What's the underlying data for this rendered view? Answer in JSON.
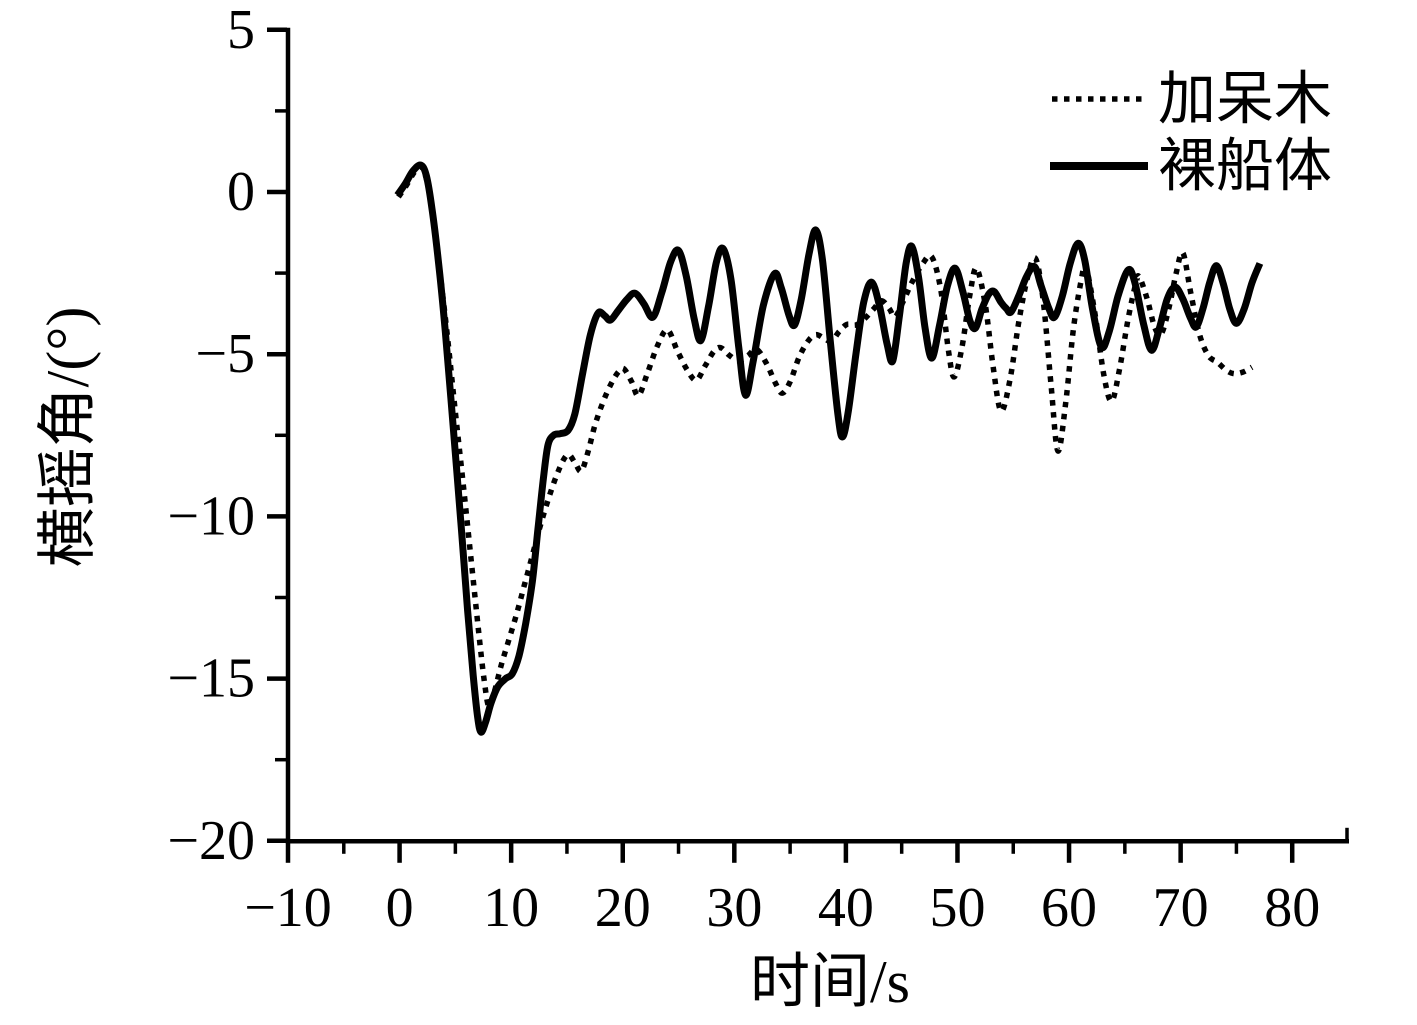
{
  "chart_data": {
    "type": "line",
    "title": "",
    "xlabel": "时间/s",
    "ylabel": "横摇角/(°)",
    "xlim": [
      -10,
      85
    ],
    "ylim": [
      -20,
      5
    ],
    "x_major_ticks": [
      -10,
      0,
      10,
      20,
      30,
      40,
      50,
      60,
      70,
      80
    ],
    "x_minor_ticks": [
      -5,
      5,
      15,
      25,
      35,
      45,
      55,
      65,
      75
    ],
    "y_major_ticks": [
      5,
      0,
      -5,
      -10,
      -15,
      -20
    ],
    "y_minor_ticks": [
      2.5,
      -2.5,
      -7.5,
      -12.5,
      -17.5
    ],
    "grid": false,
    "legend_position": "top-right-inside",
    "background_color": "#ffffff",
    "axis_color": "#000000",
    "series": [
      {
        "name": "加呆木",
        "style": "dotted",
        "color": "#000000",
        "points": [
          [
            -0.1,
            -0.15
          ],
          [
            0.6,
            0.2
          ],
          [
            1.3,
            0.6
          ],
          [
            1.9,
            0.78
          ],
          [
            2.4,
            0.4
          ],
          [
            3.0,
            -0.7
          ],
          [
            3.6,
            -2.4
          ],
          [
            4.3,
            -4.5
          ],
          [
            5.0,
            -6.8
          ],
          [
            5.7,
            -9.0
          ],
          [
            6.4,
            -11.3
          ],
          [
            7.1,
            -13.6
          ],
          [
            7.6,
            -15.1
          ],
          [
            8.0,
            -15.85
          ],
          [
            8.5,
            -15.4
          ],
          [
            9.1,
            -14.6
          ],
          [
            9.8,
            -13.8
          ],
          [
            10.5,
            -13.0
          ],
          [
            11.2,
            -12.1
          ],
          [
            11.9,
            -11.2
          ],
          [
            12.6,
            -10.3
          ],
          [
            13.3,
            -9.5
          ],
          [
            14.0,
            -8.8
          ],
          [
            14.7,
            -8.25
          ],
          [
            15.2,
            -8.1
          ],
          [
            15.8,
            -8.4
          ],
          [
            16.3,
            -8.6
          ],
          [
            16.9,
            -8.0
          ],
          [
            17.5,
            -7.2
          ],
          [
            18.2,
            -6.5
          ],
          [
            18.9,
            -5.95
          ],
          [
            19.6,
            -5.55
          ],
          [
            20.1,
            -5.45
          ],
          [
            20.8,
            -5.85
          ],
          [
            21.4,
            -6.28
          ],
          [
            22.2,
            -5.6
          ],
          [
            23.1,
            -4.75
          ],
          [
            24.0,
            -4.25
          ],
          [
            24.9,
            -4.9
          ],
          [
            25.8,
            -5.5
          ],
          [
            26.6,
            -5.8
          ],
          [
            27.4,
            -5.35
          ],
          [
            28.2,
            -4.9
          ],
          [
            28.8,
            -4.8
          ],
          [
            29.6,
            -5.05
          ],
          [
            30.4,
            -5.2
          ],
          [
            31.2,
            -5.05
          ],
          [
            32.0,
            -4.85
          ],
          [
            32.9,
            -5.3
          ],
          [
            33.7,
            -5.9
          ],
          [
            34.3,
            -6.2
          ],
          [
            35.0,
            -5.85
          ],
          [
            35.8,
            -5.1
          ],
          [
            36.6,
            -4.6
          ],
          [
            37.3,
            -4.4
          ],
          [
            38.0,
            -4.5
          ],
          [
            38.7,
            -4.6
          ],
          [
            39.4,
            -4.3
          ],
          [
            40.1,
            -4.08
          ],
          [
            40.9,
            -4.1
          ],
          [
            41.7,
            -3.9
          ],
          [
            42.5,
            -3.6
          ],
          [
            43.2,
            -3.35
          ],
          [
            43.9,
            -3.6
          ],
          [
            44.4,
            -3.85
          ],
          [
            45.1,
            -3.4
          ],
          [
            45.9,
            -2.8
          ],
          [
            46.9,
            -2.2
          ],
          [
            47.7,
            -2.0
          ],
          [
            48.5,
            -3.0
          ],
          [
            49.2,
            -4.9
          ],
          [
            49.7,
            -5.7
          ],
          [
            50.4,
            -4.8
          ],
          [
            51.1,
            -3.2
          ],
          [
            51.7,
            -2.35
          ],
          [
            52.5,
            -3.5
          ],
          [
            53.2,
            -5.4
          ],
          [
            53.9,
            -6.75
          ],
          [
            54.7,
            -5.8
          ],
          [
            55.5,
            -4.0
          ],
          [
            56.3,
            -2.6
          ],
          [
            57.0,
            -2.05
          ],
          [
            57.7,
            -3.4
          ],
          [
            58.4,
            -6.0
          ],
          [
            59.0,
            -7.98
          ],
          [
            59.7,
            -6.5
          ],
          [
            60.4,
            -4.2
          ],
          [
            61.1,
            -2.7
          ],
          [
            61.5,
            -2.3
          ],
          [
            62.3,
            -3.7
          ],
          [
            63.1,
            -5.6
          ],
          [
            63.8,
            -6.45
          ],
          [
            64.5,
            -5.5
          ],
          [
            65.3,
            -3.9
          ],
          [
            66.0,
            -2.8
          ],
          [
            66.3,
            -2.62
          ],
          [
            67.0,
            -3.3
          ],
          [
            67.7,
            -4.2
          ],
          [
            68.3,
            -4.35
          ],
          [
            69.0,
            -3.5
          ],
          [
            69.6,
            -2.5
          ],
          [
            70.2,
            -1.88
          ],
          [
            70.9,
            -3.1
          ],
          [
            71.7,
            -4.4
          ],
          [
            72.5,
            -5.05
          ],
          [
            73.3,
            -5.25
          ],
          [
            74.1,
            -5.5
          ],
          [
            74.8,
            -5.6
          ],
          [
            75.6,
            -5.55
          ],
          [
            76.4,
            -5.4
          ]
        ]
      },
      {
        "name": "裸船体",
        "style": "solid",
        "color": "#000000",
        "points": [
          [
            -0.2,
            -0.1
          ],
          [
            0.5,
            0.25
          ],
          [
            1.2,
            0.65
          ],
          [
            1.9,
            0.83
          ],
          [
            2.4,
            0.5
          ],
          [
            2.9,
            -0.5
          ],
          [
            3.5,
            -2.2
          ],
          [
            4.1,
            -4.3
          ],
          [
            4.8,
            -7.2
          ],
          [
            5.5,
            -10.2
          ],
          [
            6.1,
            -12.9
          ],
          [
            6.6,
            -14.9
          ],
          [
            7.0,
            -16.2
          ],
          [
            7.3,
            -16.65
          ],
          [
            7.7,
            -16.35
          ],
          [
            8.2,
            -15.75
          ],
          [
            8.8,
            -15.25
          ],
          [
            9.5,
            -15.0
          ],
          [
            10.1,
            -14.85
          ],
          [
            10.7,
            -14.3
          ],
          [
            11.3,
            -13.3
          ],
          [
            11.9,
            -12.0
          ],
          [
            12.4,
            -10.4
          ],
          [
            12.9,
            -8.8
          ],
          [
            13.3,
            -7.8
          ],
          [
            13.8,
            -7.5
          ],
          [
            14.4,
            -7.45
          ],
          [
            15.1,
            -7.35
          ],
          [
            15.7,
            -6.85
          ],
          [
            16.4,
            -5.6
          ],
          [
            17.1,
            -4.4
          ],
          [
            17.8,
            -3.73
          ],
          [
            18.4,
            -3.82
          ],
          [
            18.9,
            -3.95
          ],
          [
            19.6,
            -3.65
          ],
          [
            20.4,
            -3.3
          ],
          [
            21.1,
            -3.12
          ],
          [
            21.9,
            -3.45
          ],
          [
            22.7,
            -3.86
          ],
          [
            23.5,
            -3.1
          ],
          [
            24.3,
            -2.15
          ],
          [
            25.0,
            -1.8
          ],
          [
            25.7,
            -2.6
          ],
          [
            26.4,
            -3.9
          ],
          [
            27.0,
            -4.58
          ],
          [
            27.7,
            -3.5
          ],
          [
            28.4,
            -2.15
          ],
          [
            29.0,
            -1.75
          ],
          [
            29.7,
            -2.7
          ],
          [
            30.4,
            -4.8
          ],
          [
            31.0,
            -6.26
          ],
          [
            31.7,
            -5.2
          ],
          [
            32.6,
            -3.5
          ],
          [
            33.6,
            -2.52
          ],
          [
            34.2,
            -2.95
          ],
          [
            34.9,
            -3.8
          ],
          [
            35.4,
            -4.1
          ],
          [
            36.0,
            -3.3
          ],
          [
            36.7,
            -1.9
          ],
          [
            37.3,
            -1.17
          ],
          [
            37.9,
            -2.1
          ],
          [
            38.6,
            -4.6
          ],
          [
            39.3,
            -6.9
          ],
          [
            39.7,
            -7.55
          ],
          [
            40.2,
            -6.8
          ],
          [
            40.9,
            -5.0
          ],
          [
            41.6,
            -3.4
          ],
          [
            42.3,
            -2.78
          ],
          [
            43.0,
            -3.5
          ],
          [
            43.7,
            -4.7
          ],
          [
            44.2,
            -5.2
          ],
          [
            44.8,
            -3.8
          ],
          [
            45.4,
            -2.2
          ],
          [
            45.9,
            -1.67
          ],
          [
            46.5,
            -2.6
          ],
          [
            47.1,
            -4.2
          ],
          [
            47.7,
            -5.12
          ],
          [
            48.4,
            -4.1
          ],
          [
            49.1,
            -2.9
          ],
          [
            49.8,
            -2.35
          ],
          [
            50.5,
            -3.1
          ],
          [
            51.1,
            -3.95
          ],
          [
            51.6,
            -4.2
          ],
          [
            52.2,
            -3.6
          ],
          [
            52.8,
            -3.15
          ],
          [
            53.3,
            -3.07
          ],
          [
            53.9,
            -3.4
          ],
          [
            54.4,
            -3.6
          ],
          [
            54.8,
            -3.7
          ],
          [
            55.5,
            -3.2
          ],
          [
            56.2,
            -2.6
          ],
          [
            56.9,
            -2.3
          ],
          [
            57.5,
            -2.9
          ],
          [
            58.2,
            -3.6
          ],
          [
            58.7,
            -3.86
          ],
          [
            59.4,
            -3.2
          ],
          [
            60.1,
            -2.2
          ],
          [
            60.8,
            -1.58
          ],
          [
            61.4,
            -2.1
          ],
          [
            62.1,
            -3.6
          ],
          [
            62.9,
            -4.78
          ],
          [
            63.6,
            -4.3
          ],
          [
            64.4,
            -3.2
          ],
          [
            65.3,
            -2.4
          ],
          [
            65.9,
            -2.8
          ],
          [
            66.7,
            -4.1
          ],
          [
            67.4,
            -4.88
          ],
          [
            68.1,
            -4.2
          ],
          [
            68.8,
            -3.3
          ],
          [
            69.5,
            -2.93
          ],
          [
            70.2,
            -3.3
          ],
          [
            70.9,
            -3.9
          ],
          [
            71.4,
            -4.16
          ],
          [
            72.0,
            -3.6
          ],
          [
            72.6,
            -2.8
          ],
          [
            73.2,
            -2.27
          ],
          [
            73.8,
            -2.8
          ],
          [
            74.4,
            -3.6
          ],
          [
            75.0,
            -4.05
          ],
          [
            75.7,
            -3.6
          ],
          [
            76.4,
            -2.8
          ],
          [
            77.1,
            -2.2
          ]
        ]
      }
    ]
  }
}
